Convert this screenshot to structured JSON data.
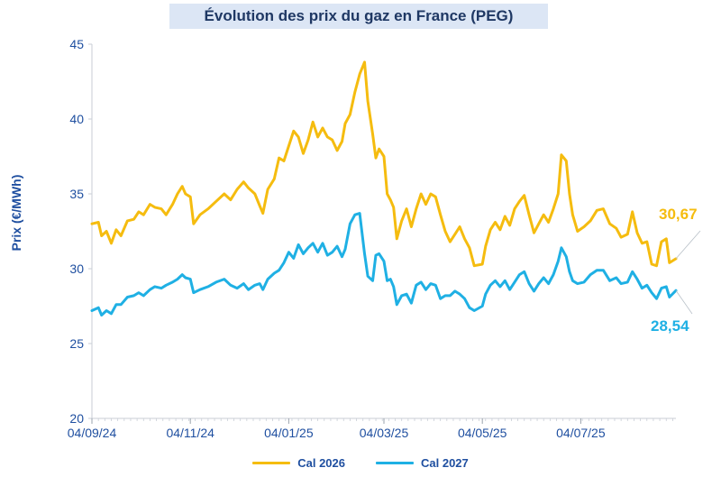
{
  "chart_data": {
    "type": "line",
    "title": "Évolution des prix du gaz en France (PEG)",
    "ylabel": "Prix (€/MWh)",
    "xlabel": "",
    "ylim": [
      20,
      45
    ],
    "yticks": [
      "20",
      "25",
      "30",
      "35",
      "40",
      "45"
    ],
    "xlim": [
      "2024-09-04",
      "2025-09-01"
    ],
    "xticks": [
      {
        "date": "2024-09-04",
        "label": "04/09/24"
      },
      {
        "date": "2024-11-04",
        "label": "04/11/24"
      },
      {
        "date": "2025-01-04",
        "label": "04/01/25"
      },
      {
        "date": "2025-03-04",
        "label": "04/03/25"
      },
      {
        "date": "2025-05-04",
        "label": "04/05/25"
      },
      {
        "date": "2025-07-04",
        "label": "04/07/25"
      }
    ],
    "grid": false,
    "legend_position": "bottom",
    "series": [
      {
        "name": "Cal 2026",
        "color": "#f5bc0f",
        "last_label": "30,67",
        "points": [
          [
            "2024-09-04",
            33.0
          ],
          [
            "2024-09-08",
            33.1
          ],
          [
            "2024-09-10",
            32.2
          ],
          [
            "2024-09-13",
            32.5
          ],
          [
            "2024-09-16",
            31.7
          ],
          [
            "2024-09-19",
            32.6
          ],
          [
            "2024-09-22",
            32.2
          ],
          [
            "2024-09-26",
            33.2
          ],
          [
            "2024-09-30",
            33.3
          ],
          [
            "2024-10-03",
            33.8
          ],
          [
            "2024-10-06",
            33.6
          ],
          [
            "2024-10-10",
            34.3
          ],
          [
            "2024-10-13",
            34.1
          ],
          [
            "2024-10-17",
            34.0
          ],
          [
            "2024-10-20",
            33.6
          ],
          [
            "2024-10-24",
            34.3
          ],
          [
            "2024-10-27",
            35.0
          ],
          [
            "2024-10-30",
            35.5
          ],
          [
            "2024-11-01",
            35.0
          ],
          [
            "2024-11-04",
            34.8
          ],
          [
            "2024-11-06",
            33.0
          ],
          [
            "2024-11-10",
            33.6
          ],
          [
            "2024-11-15",
            34.0
          ],
          [
            "2024-11-20",
            34.5
          ],
          [
            "2024-11-25",
            35.0
          ],
          [
            "2024-11-29",
            34.6
          ],
          [
            "2024-12-03",
            35.3
          ],
          [
            "2024-12-07",
            35.8
          ],
          [
            "2024-12-10",
            35.4
          ],
          [
            "2024-12-14",
            35.0
          ],
          [
            "2024-12-17",
            34.2
          ],
          [
            "2024-12-19",
            33.7
          ],
          [
            "2024-12-22",
            35.3
          ],
          [
            "2024-12-26",
            36.0
          ],
          [
            "2024-12-29",
            37.4
          ],
          [
            "2025-01-01",
            37.2
          ],
          [
            "2025-01-04",
            38.2
          ],
          [
            "2025-01-07",
            39.2
          ],
          [
            "2025-01-10",
            38.8
          ],
          [
            "2025-01-13",
            37.7
          ],
          [
            "2025-01-16",
            38.6
          ],
          [
            "2025-01-19",
            39.8
          ],
          [
            "2025-01-22",
            38.8
          ],
          [
            "2025-01-25",
            39.4
          ],
          [
            "2025-01-28",
            38.8
          ],
          [
            "2025-01-31",
            38.6
          ],
          [
            "2025-02-03",
            37.9
          ],
          [
            "2025-02-06",
            38.5
          ],
          [
            "2025-02-08",
            39.7
          ],
          [
            "2025-02-11",
            40.3
          ],
          [
            "2025-02-14",
            41.8
          ],
          [
            "2025-02-17",
            43.0
          ],
          [
            "2025-02-20",
            43.8
          ],
          [
            "2025-02-22",
            41.2
          ],
          [
            "2025-02-25",
            39.0
          ],
          [
            "2025-02-27",
            37.4
          ],
          [
            "2025-03-01",
            38.0
          ],
          [
            "2025-03-04",
            37.5
          ],
          [
            "2025-03-06",
            35.0
          ],
          [
            "2025-03-08",
            34.6
          ],
          [
            "2025-03-10",
            34.1
          ],
          [
            "2025-03-12",
            32.0
          ],
          [
            "2025-03-15",
            33.2
          ],
          [
            "2025-03-18",
            34.0
          ],
          [
            "2025-03-21",
            32.8
          ],
          [
            "2025-03-24",
            34.0
          ],
          [
            "2025-03-27",
            35.0
          ],
          [
            "2025-03-30",
            34.3
          ],
          [
            "2025-04-02",
            35.0
          ],
          [
            "2025-04-05",
            34.8
          ],
          [
            "2025-04-08",
            33.6
          ],
          [
            "2025-04-11",
            32.5
          ],
          [
            "2025-04-14",
            31.8
          ],
          [
            "2025-04-17",
            32.3
          ],
          [
            "2025-04-20",
            32.8
          ],
          [
            "2025-04-23",
            32.0
          ],
          [
            "2025-04-26",
            31.4
          ],
          [
            "2025-04-29",
            30.2
          ],
          [
            "2025-05-04",
            30.3
          ],
          [
            "2025-05-06",
            31.5
          ],
          [
            "2025-05-09",
            32.6
          ],
          [
            "2025-05-12",
            33.1
          ],
          [
            "2025-05-15",
            32.6
          ],
          [
            "2025-05-18",
            33.5
          ],
          [
            "2025-05-21",
            32.9
          ],
          [
            "2025-05-24",
            34.0
          ],
          [
            "2025-05-27",
            34.5
          ],
          [
            "2025-05-30",
            34.9
          ],
          [
            "2025-06-02",
            33.6
          ],
          [
            "2025-06-05",
            32.4
          ],
          [
            "2025-06-08",
            33.0
          ],
          [
            "2025-06-11",
            33.6
          ],
          [
            "2025-06-14",
            33.1
          ],
          [
            "2025-06-17",
            34.0
          ],
          [
            "2025-06-20",
            35.0
          ],
          [
            "2025-06-22",
            37.6
          ],
          [
            "2025-06-25",
            37.2
          ],
          [
            "2025-06-27",
            35.0
          ],
          [
            "2025-06-29",
            33.6
          ],
          [
            "2025-07-02",
            32.5
          ],
          [
            "2025-07-06",
            32.8
          ],
          [
            "2025-07-10",
            33.2
          ],
          [
            "2025-07-14",
            33.9
          ],
          [
            "2025-07-18",
            34.0
          ],
          [
            "2025-07-22",
            33.0
          ],
          [
            "2025-07-26",
            32.7
          ],
          [
            "2025-07-29",
            32.1
          ],
          [
            "2025-08-02",
            32.3
          ],
          [
            "2025-08-05",
            33.8
          ],
          [
            "2025-08-08",
            32.4
          ],
          [
            "2025-08-11",
            31.7
          ],
          [
            "2025-08-14",
            31.8
          ],
          [
            "2025-08-17",
            30.3
          ],
          [
            "2025-08-20",
            30.2
          ],
          [
            "2025-08-23",
            31.8
          ],
          [
            "2025-08-26",
            32.0
          ],
          [
            "2025-08-28",
            30.4
          ],
          [
            "2025-09-01",
            30.67
          ]
        ]
      },
      {
        "name": "Cal 2027",
        "color": "#1fb0e4",
        "last_label": "28,54",
        "points": [
          [
            "2024-09-04",
            27.2
          ],
          [
            "2024-09-08",
            27.4
          ],
          [
            "2024-09-10",
            26.9
          ],
          [
            "2024-09-13",
            27.2
          ],
          [
            "2024-09-16",
            27.0
          ],
          [
            "2024-09-19",
            27.6
          ],
          [
            "2024-09-22",
            27.6
          ],
          [
            "2024-09-26",
            28.1
          ],
          [
            "2024-09-30",
            28.2
          ],
          [
            "2024-10-03",
            28.4
          ],
          [
            "2024-10-06",
            28.2
          ],
          [
            "2024-10-10",
            28.6
          ],
          [
            "2024-10-13",
            28.8
          ],
          [
            "2024-10-17",
            28.7
          ],
          [
            "2024-10-20",
            28.9
          ],
          [
            "2024-10-24",
            29.1
          ],
          [
            "2024-10-27",
            29.3
          ],
          [
            "2024-10-30",
            29.6
          ],
          [
            "2024-11-01",
            29.4
          ],
          [
            "2024-11-04",
            29.3
          ],
          [
            "2024-11-06",
            28.4
          ],
          [
            "2024-11-10",
            28.6
          ],
          [
            "2024-11-15",
            28.8
          ],
          [
            "2024-11-20",
            29.1
          ],
          [
            "2024-11-25",
            29.3
          ],
          [
            "2024-11-29",
            28.9
          ],
          [
            "2024-12-03",
            28.7
          ],
          [
            "2024-12-07",
            29.0
          ],
          [
            "2024-12-10",
            28.6
          ],
          [
            "2024-12-14",
            28.9
          ],
          [
            "2024-12-17",
            29.0
          ],
          [
            "2024-12-19",
            28.6
          ],
          [
            "2024-12-22",
            29.3
          ],
          [
            "2024-12-26",
            29.7
          ],
          [
            "2024-12-29",
            29.9
          ],
          [
            "2025-01-01",
            30.4
          ],
          [
            "2025-01-04",
            31.1
          ],
          [
            "2025-01-07",
            30.7
          ],
          [
            "2025-01-10",
            31.6
          ],
          [
            "2025-01-13",
            31.0
          ],
          [
            "2025-01-16",
            31.4
          ],
          [
            "2025-01-19",
            31.7
          ],
          [
            "2025-01-22",
            31.1
          ],
          [
            "2025-01-25",
            31.7
          ],
          [
            "2025-01-28",
            30.9
          ],
          [
            "2025-01-31",
            31.1
          ],
          [
            "2025-02-03",
            31.5
          ],
          [
            "2025-02-06",
            30.8
          ],
          [
            "2025-02-08",
            31.3
          ],
          [
            "2025-02-11",
            33.0
          ],
          [
            "2025-02-14",
            33.6
          ],
          [
            "2025-02-17",
            33.7
          ],
          [
            "2025-02-20",
            31.0
          ],
          [
            "2025-02-22",
            29.5
          ],
          [
            "2025-02-25",
            29.2
          ],
          [
            "2025-02-27",
            30.9
          ],
          [
            "2025-03-01",
            31.0
          ],
          [
            "2025-03-04",
            30.5
          ],
          [
            "2025-03-06",
            29.2
          ],
          [
            "2025-03-08",
            29.3
          ],
          [
            "2025-03-10",
            28.8
          ],
          [
            "2025-03-12",
            27.6
          ],
          [
            "2025-03-15",
            28.2
          ],
          [
            "2025-03-18",
            28.3
          ],
          [
            "2025-03-21",
            27.7
          ],
          [
            "2025-03-24",
            28.9
          ],
          [
            "2025-03-27",
            29.1
          ],
          [
            "2025-03-30",
            28.6
          ],
          [
            "2025-04-02",
            29.0
          ],
          [
            "2025-04-05",
            28.9
          ],
          [
            "2025-04-08",
            28.0
          ],
          [
            "2025-04-11",
            28.2
          ],
          [
            "2025-04-14",
            28.2
          ],
          [
            "2025-04-17",
            28.5
          ],
          [
            "2025-04-20",
            28.3
          ],
          [
            "2025-04-23",
            28.0
          ],
          [
            "2025-04-26",
            27.4
          ],
          [
            "2025-04-29",
            27.2
          ],
          [
            "2025-05-04",
            27.5
          ],
          [
            "2025-05-06",
            28.3
          ],
          [
            "2025-05-09",
            28.9
          ],
          [
            "2025-05-12",
            29.2
          ],
          [
            "2025-05-15",
            28.8
          ],
          [
            "2025-05-18",
            29.2
          ],
          [
            "2025-05-21",
            28.6
          ],
          [
            "2025-05-24",
            29.1
          ],
          [
            "2025-05-27",
            29.6
          ],
          [
            "2025-05-30",
            29.8
          ],
          [
            "2025-06-02",
            29.0
          ],
          [
            "2025-06-05",
            28.5
          ],
          [
            "2025-06-08",
            29.0
          ],
          [
            "2025-06-11",
            29.4
          ],
          [
            "2025-06-14",
            29.0
          ],
          [
            "2025-06-17",
            29.6
          ],
          [
            "2025-06-20",
            30.5
          ],
          [
            "2025-06-22",
            31.4
          ],
          [
            "2025-06-25",
            30.8
          ],
          [
            "2025-06-27",
            29.8
          ],
          [
            "2025-06-29",
            29.2
          ],
          [
            "2025-07-02",
            29.0
          ],
          [
            "2025-07-06",
            29.1
          ],
          [
            "2025-07-10",
            29.6
          ],
          [
            "2025-07-14",
            29.9
          ],
          [
            "2025-07-18",
            29.9
          ],
          [
            "2025-07-22",
            29.2
          ],
          [
            "2025-07-26",
            29.4
          ],
          [
            "2025-07-29",
            29.0
          ],
          [
            "2025-08-02",
            29.1
          ],
          [
            "2025-08-05",
            29.8
          ],
          [
            "2025-08-08",
            29.3
          ],
          [
            "2025-08-11",
            28.7
          ],
          [
            "2025-08-14",
            28.9
          ],
          [
            "2025-08-17",
            28.4
          ],
          [
            "2025-08-20",
            28.0
          ],
          [
            "2025-08-23",
            28.7
          ],
          [
            "2025-08-26",
            28.8
          ],
          [
            "2025-08-28",
            28.1
          ],
          [
            "2025-09-01",
            28.54
          ]
        ]
      }
    ]
  }
}
